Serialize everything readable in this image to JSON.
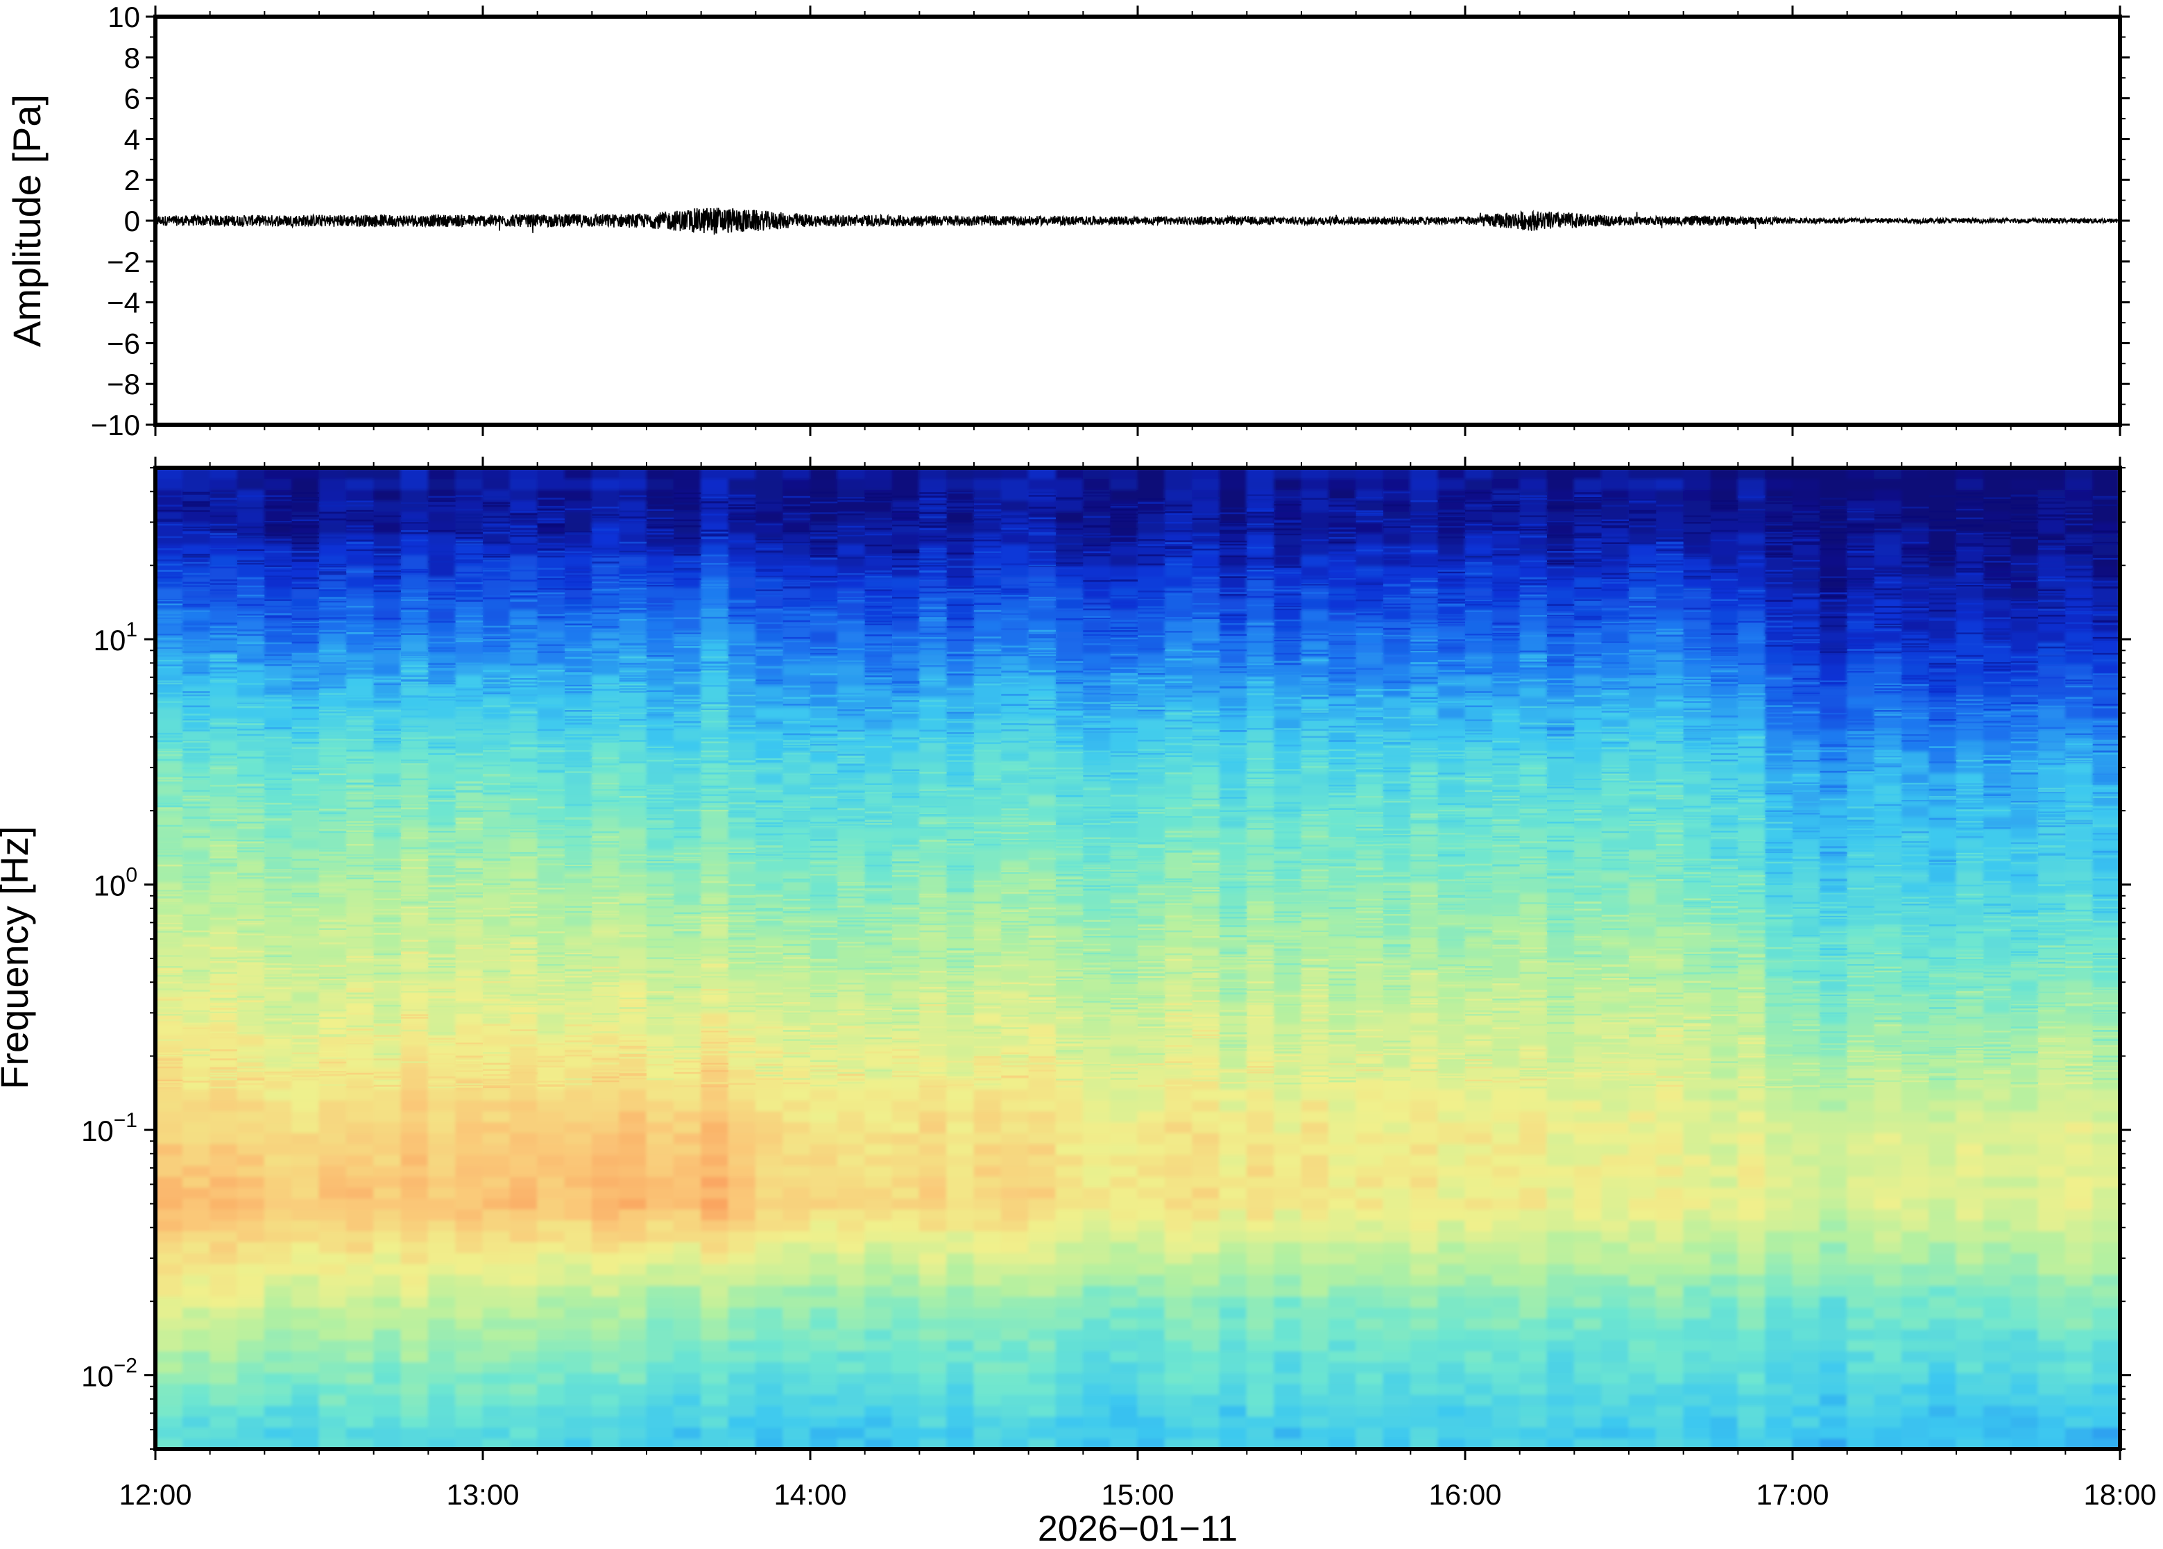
{
  "chart_data": [
    {
      "type": "line",
      "ylabel": "Amplitude [Pa]",
      "ylim": [
        -10,
        10
      ],
      "y_ticks": [
        "10",
        "8",
        "6",
        "4",
        "2",
        "0",
        "−2",
        "−4",
        "−6",
        "−8",
        "−10"
      ],
      "x_tick_labels": [
        "12:00",
        "13:00",
        "14:00",
        "15:00",
        "16:00",
        "17:00",
        "18:00"
      ],
      "x_range": [
        "12:00",
        "18:00"
      ],
      "grid": false,
      "series": [
        {
          "color": "#000000",
          "baseline": 0,
          "x": [
            "12:00",
            "12:30",
            "13:00",
            "13:30",
            "13:42",
            "14:00",
            "14:30",
            "15:00",
            "15:30",
            "16:00",
            "16:12",
            "16:30",
            "16:45",
            "17:00",
            "17:30",
            "18:00"
          ],
          "envelope": [
            0.25,
            0.3,
            0.3,
            0.35,
            0.7,
            0.3,
            0.25,
            0.2,
            0.2,
            0.2,
            0.5,
            0.2,
            0.25,
            0.15,
            0.12,
            0.12
          ]
        }
      ]
    },
    {
      "type": "heatmap",
      "ylabel": "Frequency [Hz]",
      "xlabel": "2026−01−11",
      "y_scale": "log",
      "ylim": [
        0.005,
        50
      ],
      "y_ticks": [
        {
          "base": "10",
          "exp": "1",
          "value": 10
        },
        {
          "base": "10",
          "exp": "0",
          "value": 1
        },
        {
          "base": "10",
          "exp": "−1",
          "value": 0.1
        },
        {
          "base": "10",
          "exp": "−2",
          "value": 0.01
        }
      ],
      "x_tick_labels": [
        "12:00",
        "13:00",
        "14:00",
        "15:00",
        "16:00",
        "17:00",
        "18:00"
      ],
      "x_range": [
        "12:00",
        "18:00"
      ],
      "colormap": "jet",
      "colormap_stops": [
        "#0a0a78",
        "#0b32d6",
        "#1e78f0",
        "#3cc8f0",
        "#6ee6d0",
        "#b4f0a0",
        "#f0f08c",
        "#fac878",
        "#fa9a5a"
      ],
      "description_grid": {
        "time": [
          "12:00",
          "13:00",
          "13:42",
          "14:00",
          "15:00",
          "16:00",
          "16:45",
          "17:00",
          "18:00"
        ],
        "freq_hz": [
          0.006,
          0.02,
          0.05,
          0.1,
          0.3,
          1,
          3,
          10,
          30
        ],
        "relative_power": [
          [
            0.45,
            0.45,
            0.4,
            0.4,
            0.4,
            0.4,
            0.4,
            0.38,
            0.35
          ],
          [
            0.72,
            0.65,
            0.6,
            0.6,
            0.55,
            0.55,
            0.55,
            0.5,
            0.55
          ],
          [
            0.9,
            0.88,
            0.92,
            0.85,
            0.8,
            0.75,
            0.75,
            0.7,
            0.72
          ],
          [
            0.82,
            0.85,
            0.88,
            0.82,
            0.78,
            0.76,
            0.74,
            0.68,
            0.72
          ],
          [
            0.72,
            0.72,
            0.72,
            0.7,
            0.68,
            0.66,
            0.68,
            0.55,
            0.58
          ],
          [
            0.62,
            0.62,
            0.58,
            0.56,
            0.56,
            0.55,
            0.55,
            0.42,
            0.42
          ],
          [
            0.5,
            0.5,
            0.45,
            0.45,
            0.45,
            0.44,
            0.45,
            0.32,
            0.33
          ],
          [
            0.28,
            0.26,
            0.3,
            0.25,
            0.24,
            0.22,
            0.25,
            0.12,
            0.1
          ],
          [
            0.05,
            0.05,
            0.06,
            0.05,
            0.04,
            0.04,
            0.05,
            0.0,
            0.0
          ]
        ]
      }
    }
  ]
}
